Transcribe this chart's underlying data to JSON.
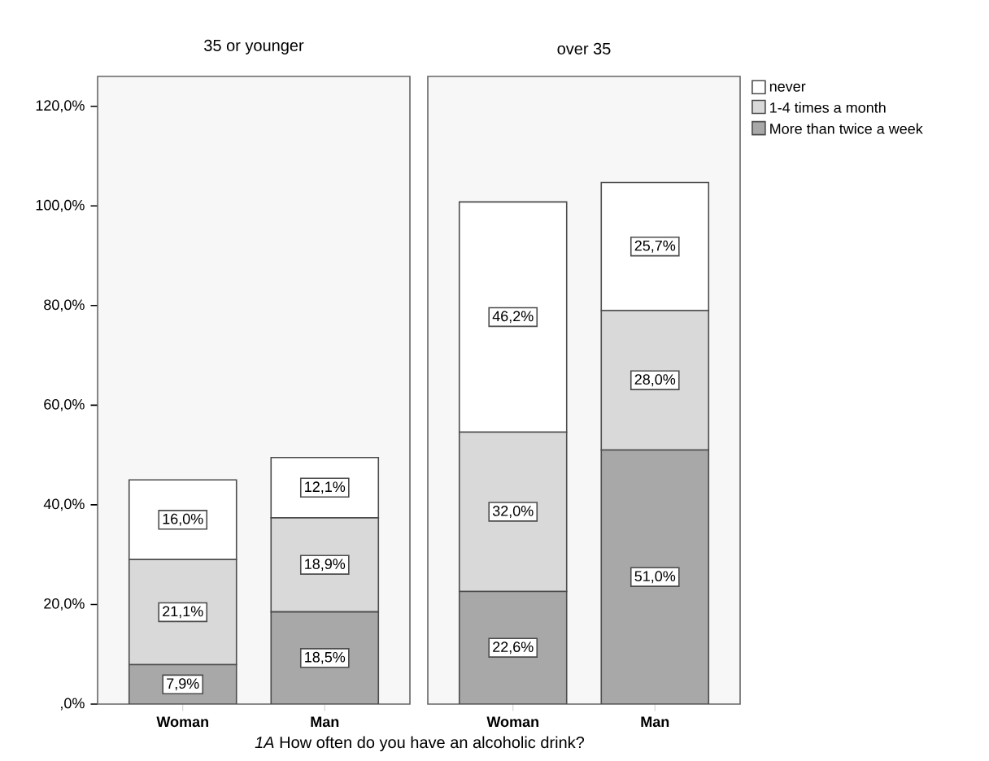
{
  "chart_data": [
    {
      "type": "bar",
      "title": "35 or younger",
      "stacked": true,
      "categories": [
        "Woman",
        "Man"
      ],
      "ylim": [
        0,
        126
      ],
      "yticks": [
        {
          "value": 0,
          "label": ",0%"
        },
        {
          "value": 20,
          "label": "20,0%"
        },
        {
          "value": 40,
          "label": "40,0%"
        },
        {
          "value": 60,
          "label": "60,0%"
        },
        {
          "value": 80,
          "label": "80,0%"
        },
        {
          "value": 100,
          "label": "100,0%"
        },
        {
          "value": 120,
          "label": "120,0%"
        }
      ],
      "legend": false,
      "series": [
        {
          "color": "#a8a8a8",
          "values": [
            7.9,
            18.5
          ],
          "value_labels": [
            "7,9%",
            "18,5%"
          ]
        },
        {
          "color": "#d9d9d9",
          "values": [
            21.1,
            18.9
          ],
          "value_labels": [
            "21,1%",
            "18,9%"
          ]
        },
        {
          "color": "#ffffff",
          "values": [
            16.0,
            12.1
          ],
          "value_labels": [
            "16,0%",
            "12,1%"
          ]
        }
      ]
    },
    {
      "type": "bar",
      "title": "over 35",
      "stacked": true,
      "categories": [
        "Woman",
        "Man"
      ],
      "ylim": [
        0,
        126
      ],
      "tick_labels": "x",
      "legend": "top right",
      "annotations": [
        "*1A* How often do you have an alcoholic drink?"
      ],
      "series": [
        {
          "name": "More than twice a week",
          "color": "#a8a8a8",
          "values": [
            22.6,
            51.0
          ],
          "value_labels": [
            "22,6%",
            "51,0%"
          ]
        },
        {
          "name": "1-4 times a month",
          "color": "#d9d9d9",
          "values": [
            32.0,
            28.0
          ],
          "value_labels": [
            "32,0%",
            "28,0%"
          ]
        },
        {
          "name": "never",
          "color": "#ffffff",
          "values": [
            46.2,
            25.7
          ],
          "value_labels": [
            "46,2%",
            "25,7%"
          ]
        }
      ]
    }
  ]
}
